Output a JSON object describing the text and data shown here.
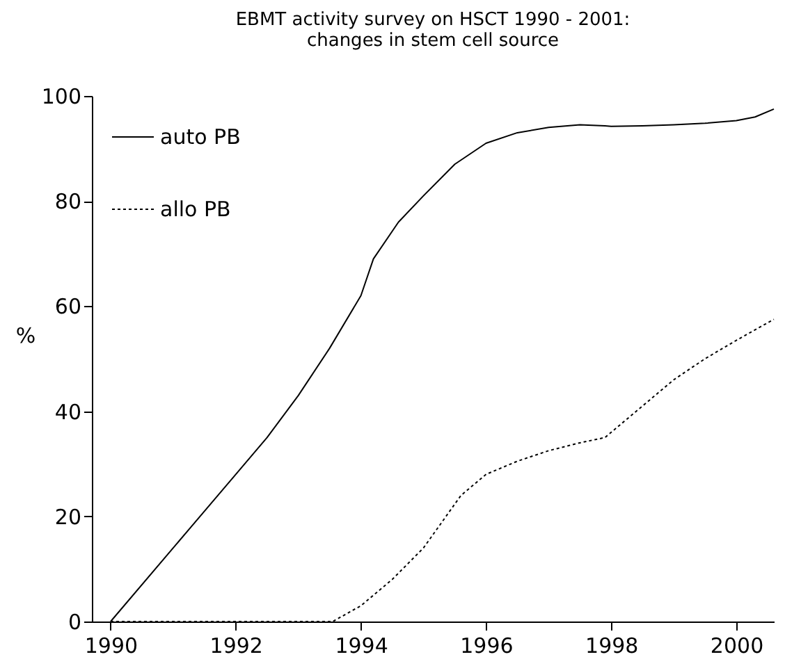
{
  "chart_data": {
    "type": "line",
    "title": "EBMT activity survey on HSCT 1990 - 2001:\nchanges  in stem cell source",
    "ylabel": "%",
    "xlim": [
      1989.7,
      2000.6
    ],
    "ylim": [
      0,
      100
    ],
    "xticks": [
      1990,
      1992,
      1994,
      1996,
      1998,
      2000
    ],
    "yticks": [
      0,
      20,
      40,
      60,
      80,
      100
    ],
    "grid": false,
    "legend": "top left",
    "marker": "none",
    "series": [
      {
        "name": "auto PB",
        "color": "#000000",
        "line_style": "solid",
        "x": [
          1990,
          1991,
          1992,
          1992.5,
          1993,
          1993.5,
          1994,
          1994.2,
          1994.6,
          1995,
          1995.5,
          1996,
          1996.5,
          1997,
          1997.5,
          1997.9,
          1998,
          1998.5,
          1999,
          1999.5,
          2000,
          2000.3,
          2000.6
        ],
        "values": [
          0,
          14,
          28,
          35,
          43,
          52,
          62,
          69,
          76,
          81,
          87,
          91,
          93,
          94,
          94.5,
          94.3,
          94.2,
          94.3,
          94.5,
          94.8,
          95.3,
          96,
          97.5
        ]
      },
      {
        "name": "allo PB",
        "color": "#000000",
        "line_style": "dotted",
        "x": [
          1990,
          1991,
          1992,
          1993,
          1993.55,
          1994,
          1994.5,
          1995,
          1995.3,
          1995.6,
          1996,
          1996.5,
          1997,
          1997.5,
          1997.9,
          1998.5,
          1999,
          1999.5,
          2000,
          2000.3,
          2000.6
        ],
        "values": [
          0,
          0,
          0,
          0,
          0,
          3,
          8,
          14,
          19,
          24,
          28,
          30.5,
          32.5,
          34,
          35,
          41,
          46,
          50,
          53.5,
          55.5,
          57.5
        ]
      }
    ]
  }
}
